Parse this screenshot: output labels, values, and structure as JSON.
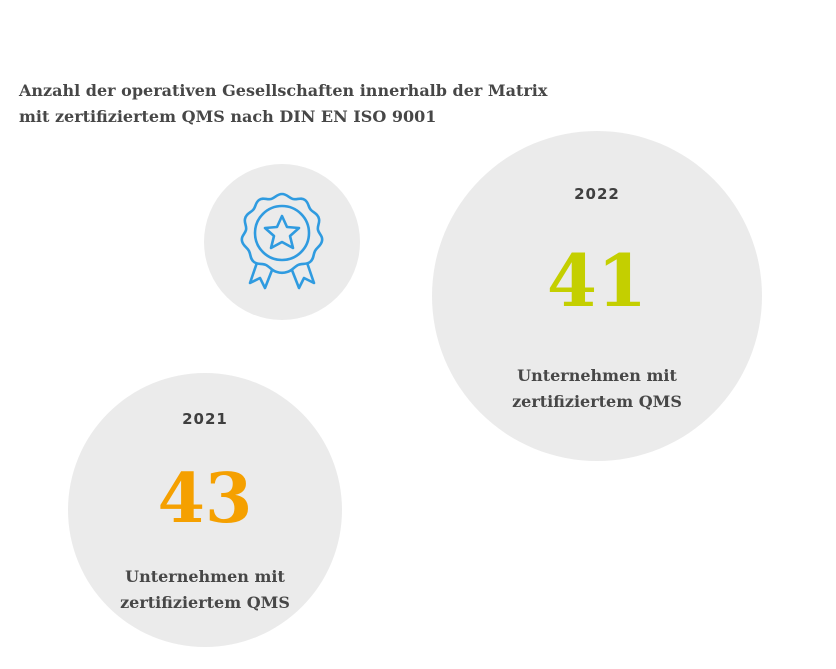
{
  "title": {
    "line1": "Anzahl der operativen Gesellschaften innerhalb der Matrix",
    "line2": "mit zertifiziertem QMS nach DIN EN ISO 9001"
  },
  "badge": {
    "icon": "award-rosette-icon",
    "color": "#2f9be0",
    "background": "#ebebeb"
  },
  "stats": [
    {
      "year": "2022",
      "value": "41",
      "color": "#c4cf00",
      "label_line1": "Unternehmen mit",
      "label_line2": "zertifiziertem QMS"
    },
    {
      "year": "2021",
      "value": "43",
      "color": "#f5a000",
      "label_line1": "Unternehmen mit",
      "label_line2": "zertifiziertem QMS"
    }
  ]
}
